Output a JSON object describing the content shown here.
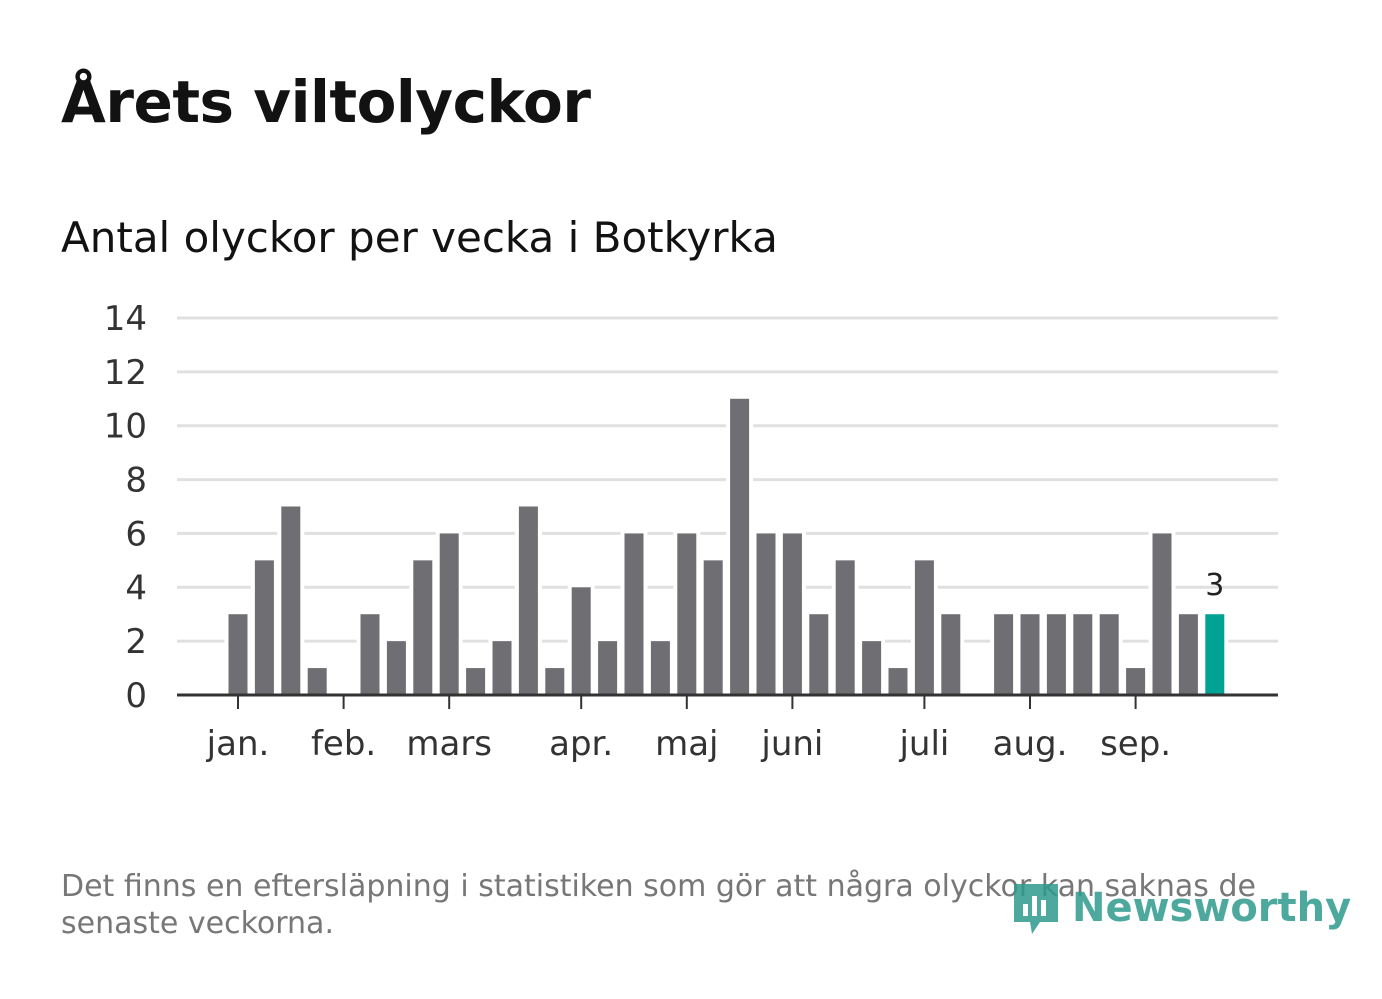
{
  "title": "Årets viltolyckor",
  "subtitle": "Antal olyckor per vecka i Botkyrka",
  "note": "Det finns en eftersläpning i statistiken som gör att några olyckor kan saknas de senaste veckorna.",
  "logo": "Newsworthy",
  "chart_data": {
    "type": "bar",
    "title": "Antal olyckor per vecka i Botkyrka",
    "xlabel": "",
    "ylabel": "",
    "ylim": [
      0,
      14
    ],
    "yticks": [
      0,
      2,
      4,
      6,
      8,
      10,
      12,
      14
    ],
    "values": [
      3,
      5,
      7,
      1,
      0,
      3,
      2,
      5,
      6,
      1,
      2,
      7,
      1,
      4,
      2,
      6,
      2,
      6,
      5,
      11,
      6,
      6,
      3,
      5,
      2,
      1,
      5,
      3,
      0,
      3,
      3,
      3,
      3,
      3,
      1,
      6,
      3,
      3
    ],
    "month_ticks": [
      {
        "label": "jan.",
        "week_index": 0
      },
      {
        "label": "feb.",
        "week_index": 4
      },
      {
        "label": "mars",
        "week_index": 8
      },
      {
        "label": "apr.",
        "week_index": 13
      },
      {
        "label": "maj",
        "week_index": 17
      },
      {
        "label": "juni",
        "week_index": 21
      },
      {
        "label": "juli",
        "week_index": 26
      },
      {
        "label": "aug.",
        "week_index": 30
      },
      {
        "label": "sep.",
        "week_index": 34
      }
    ],
    "highlight_label": "3",
    "colors": {
      "bar": "#6f6e73",
      "highlight": "#00a293",
      "grid": "#e0e0e0",
      "axis": "#333333"
    }
  }
}
